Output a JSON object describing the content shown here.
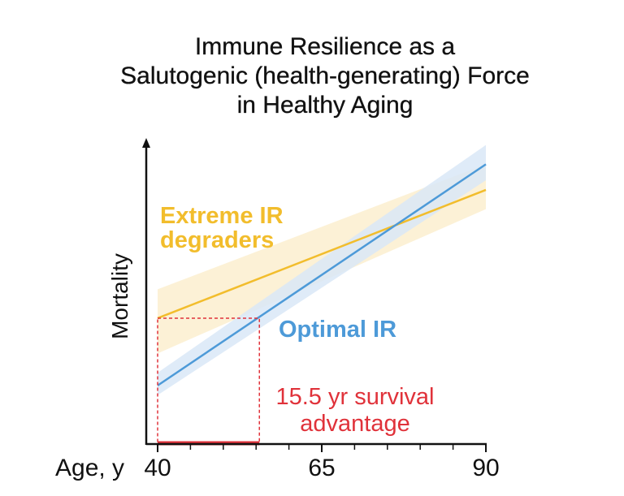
{
  "title_lines": [
    "Immune Resilience as a",
    "Salutogenic (health-generating) Force",
    "in Healthy Aging"
  ],
  "chart_data": {
    "type": "line",
    "title": "Immune Resilience as a Salutogenic (health-generating) Force in Healthy Aging",
    "xlabel": "Age, y",
    "ylabel": "Mortality",
    "xlim": [
      40,
      90
    ],
    "xticks": [
      40,
      65,
      90
    ],
    "minor_xticks": [
      45,
      50,
      55,
      60,
      70,
      75,
      80,
      85
    ],
    "grid": false,
    "series": [
      {
        "name": "Extreme IR degraders",
        "color": "#f2bd2c",
        "band_color": "#fbefcf",
        "x": [
          40,
          90
        ],
        "y": [
          0.39,
          0.79
        ],
        "ci_lower": [
          0.28,
          0.73
        ],
        "ci_upper": [
          0.48,
          0.87
        ]
      },
      {
        "name": "Optimal IR",
        "color": "#4d9ad8",
        "band_color": "#d9e8f7",
        "x": [
          40,
          90
        ],
        "y": [
          0.18,
          0.87
        ],
        "ci_lower": [
          0.15,
          0.82
        ],
        "ci_upper": [
          0.22,
          0.93
        ]
      }
    ],
    "annotations": [
      {
        "text_lines": [
          "15.5 yr survival",
          "advantage"
        ],
        "color": "#e0323a",
        "from_x": 40,
        "to_x": 55.5,
        "mortality_level": 0.39
      }
    ]
  }
}
